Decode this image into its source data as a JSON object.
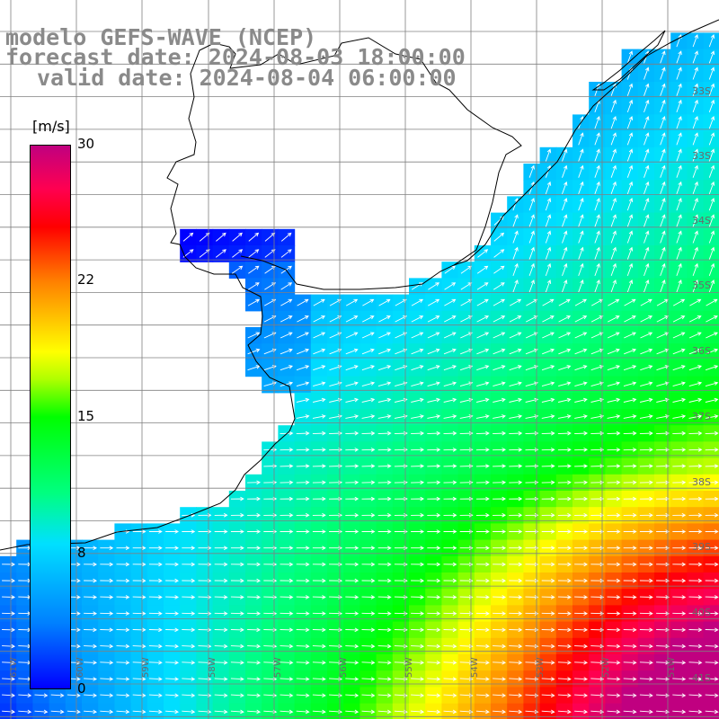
{
  "header": {
    "line1": "modelo GEFS-WAVE (NCEP)",
    "line2": "forecast date: 2024-08-03 18:00:00",
    "line3": "valid date: 2024-08-04 06:00:00"
  },
  "colorbar": {
    "unit": "[m/s]",
    "min": 0,
    "max": 30,
    "ticks": [
      "30",
      "22",
      "15",
      "8",
      "0"
    ]
  },
  "lat_labels": [
    "33S",
    "34S",
    "35S",
    "36S",
    "37S",
    "38S",
    "39S",
    "40S",
    "41S"
  ],
  "lon_labels": [
    "61W",
    "60W",
    "59W",
    "58W",
    "57W",
    "56W",
    "55W",
    "54W",
    "53W",
    "52W",
    "51W"
  ],
  "colors": {
    "land": "#ffffff",
    "grid": "#808080",
    "coastline": "#000000",
    "arrow": "#ffffff",
    "label": "#808080"
  },
  "field": {
    "variable": "wind speed",
    "arrow_direction": "mostly eastward to north-eastward"
  }
}
